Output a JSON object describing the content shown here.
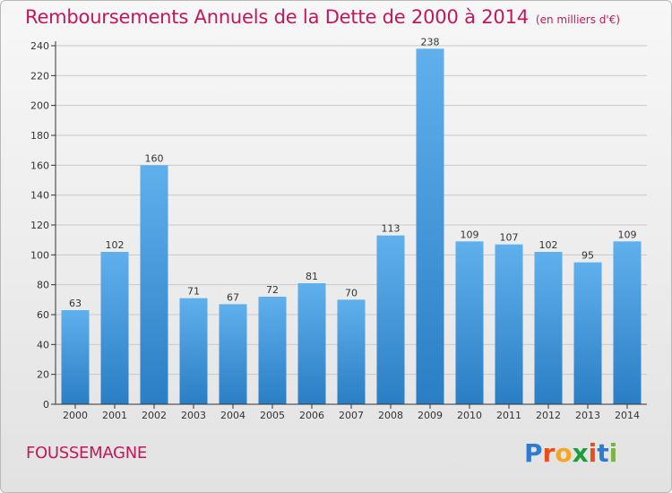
{
  "header": {
    "title": "Remboursements Annuels de la Dette de 2000 à 2014",
    "subtitle": "(en milliers d'€)"
  },
  "footer": {
    "commune": "FOUSSEMAGNE",
    "logo_text": "Proxiti",
    "logo_colors": [
      "#2e7bcf",
      "#e94e1b",
      "#f5a623",
      "#1e9e3a",
      "#e94e1b",
      "#2e7bcf",
      "#7cb342"
    ]
  },
  "colors": {
    "bar_top": "#5fb0ec",
    "bar_bottom": "#2a7ec4",
    "axis": "#333333",
    "grid": "#c9c9c9",
    "label": "#333333"
  },
  "chart_data": {
    "type": "bar",
    "categories": [
      "2000",
      "2001",
      "2002",
      "2003",
      "2004",
      "2005",
      "2006",
      "2007",
      "2008",
      "2009",
      "2010",
      "2011",
      "2012",
      "2013",
      "2014"
    ],
    "values": [
      63,
      102,
      160,
      71,
      67,
      72,
      81,
      70,
      113,
      238,
      109,
      107,
      102,
      95,
      109
    ],
    "ylim": [
      0,
      240
    ],
    "yticks": [
      0,
      20,
      40,
      60,
      80,
      100,
      120,
      140,
      160,
      180,
      200,
      220,
      240
    ],
    "grid": true,
    "legend": "none"
  }
}
